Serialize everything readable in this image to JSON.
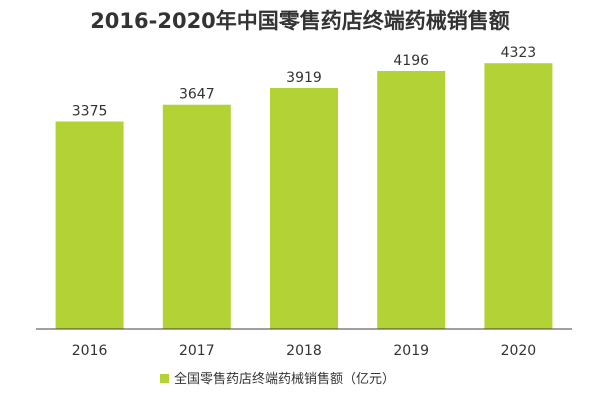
{
  "chart_data": {
    "type": "bar",
    "title": "2016-2020年中国零售药店终端药械销售额",
    "categories": [
      "2016",
      "2017",
      "2018",
      "2019",
      "2020"
    ],
    "series": [
      {
        "name": "全国零售药店终端药械销售额（亿元）",
        "values": [
          3375,
          3647,
          3919,
          4196,
          4323
        ],
        "color": "#b2d235"
      }
    ],
    "data_labels": [
      "3375",
      "3647",
      "3919",
      "4196",
      "4323"
    ],
    "ylim": [
      0,
      4700
    ],
    "grid": false,
    "legend_position": "bottom"
  }
}
